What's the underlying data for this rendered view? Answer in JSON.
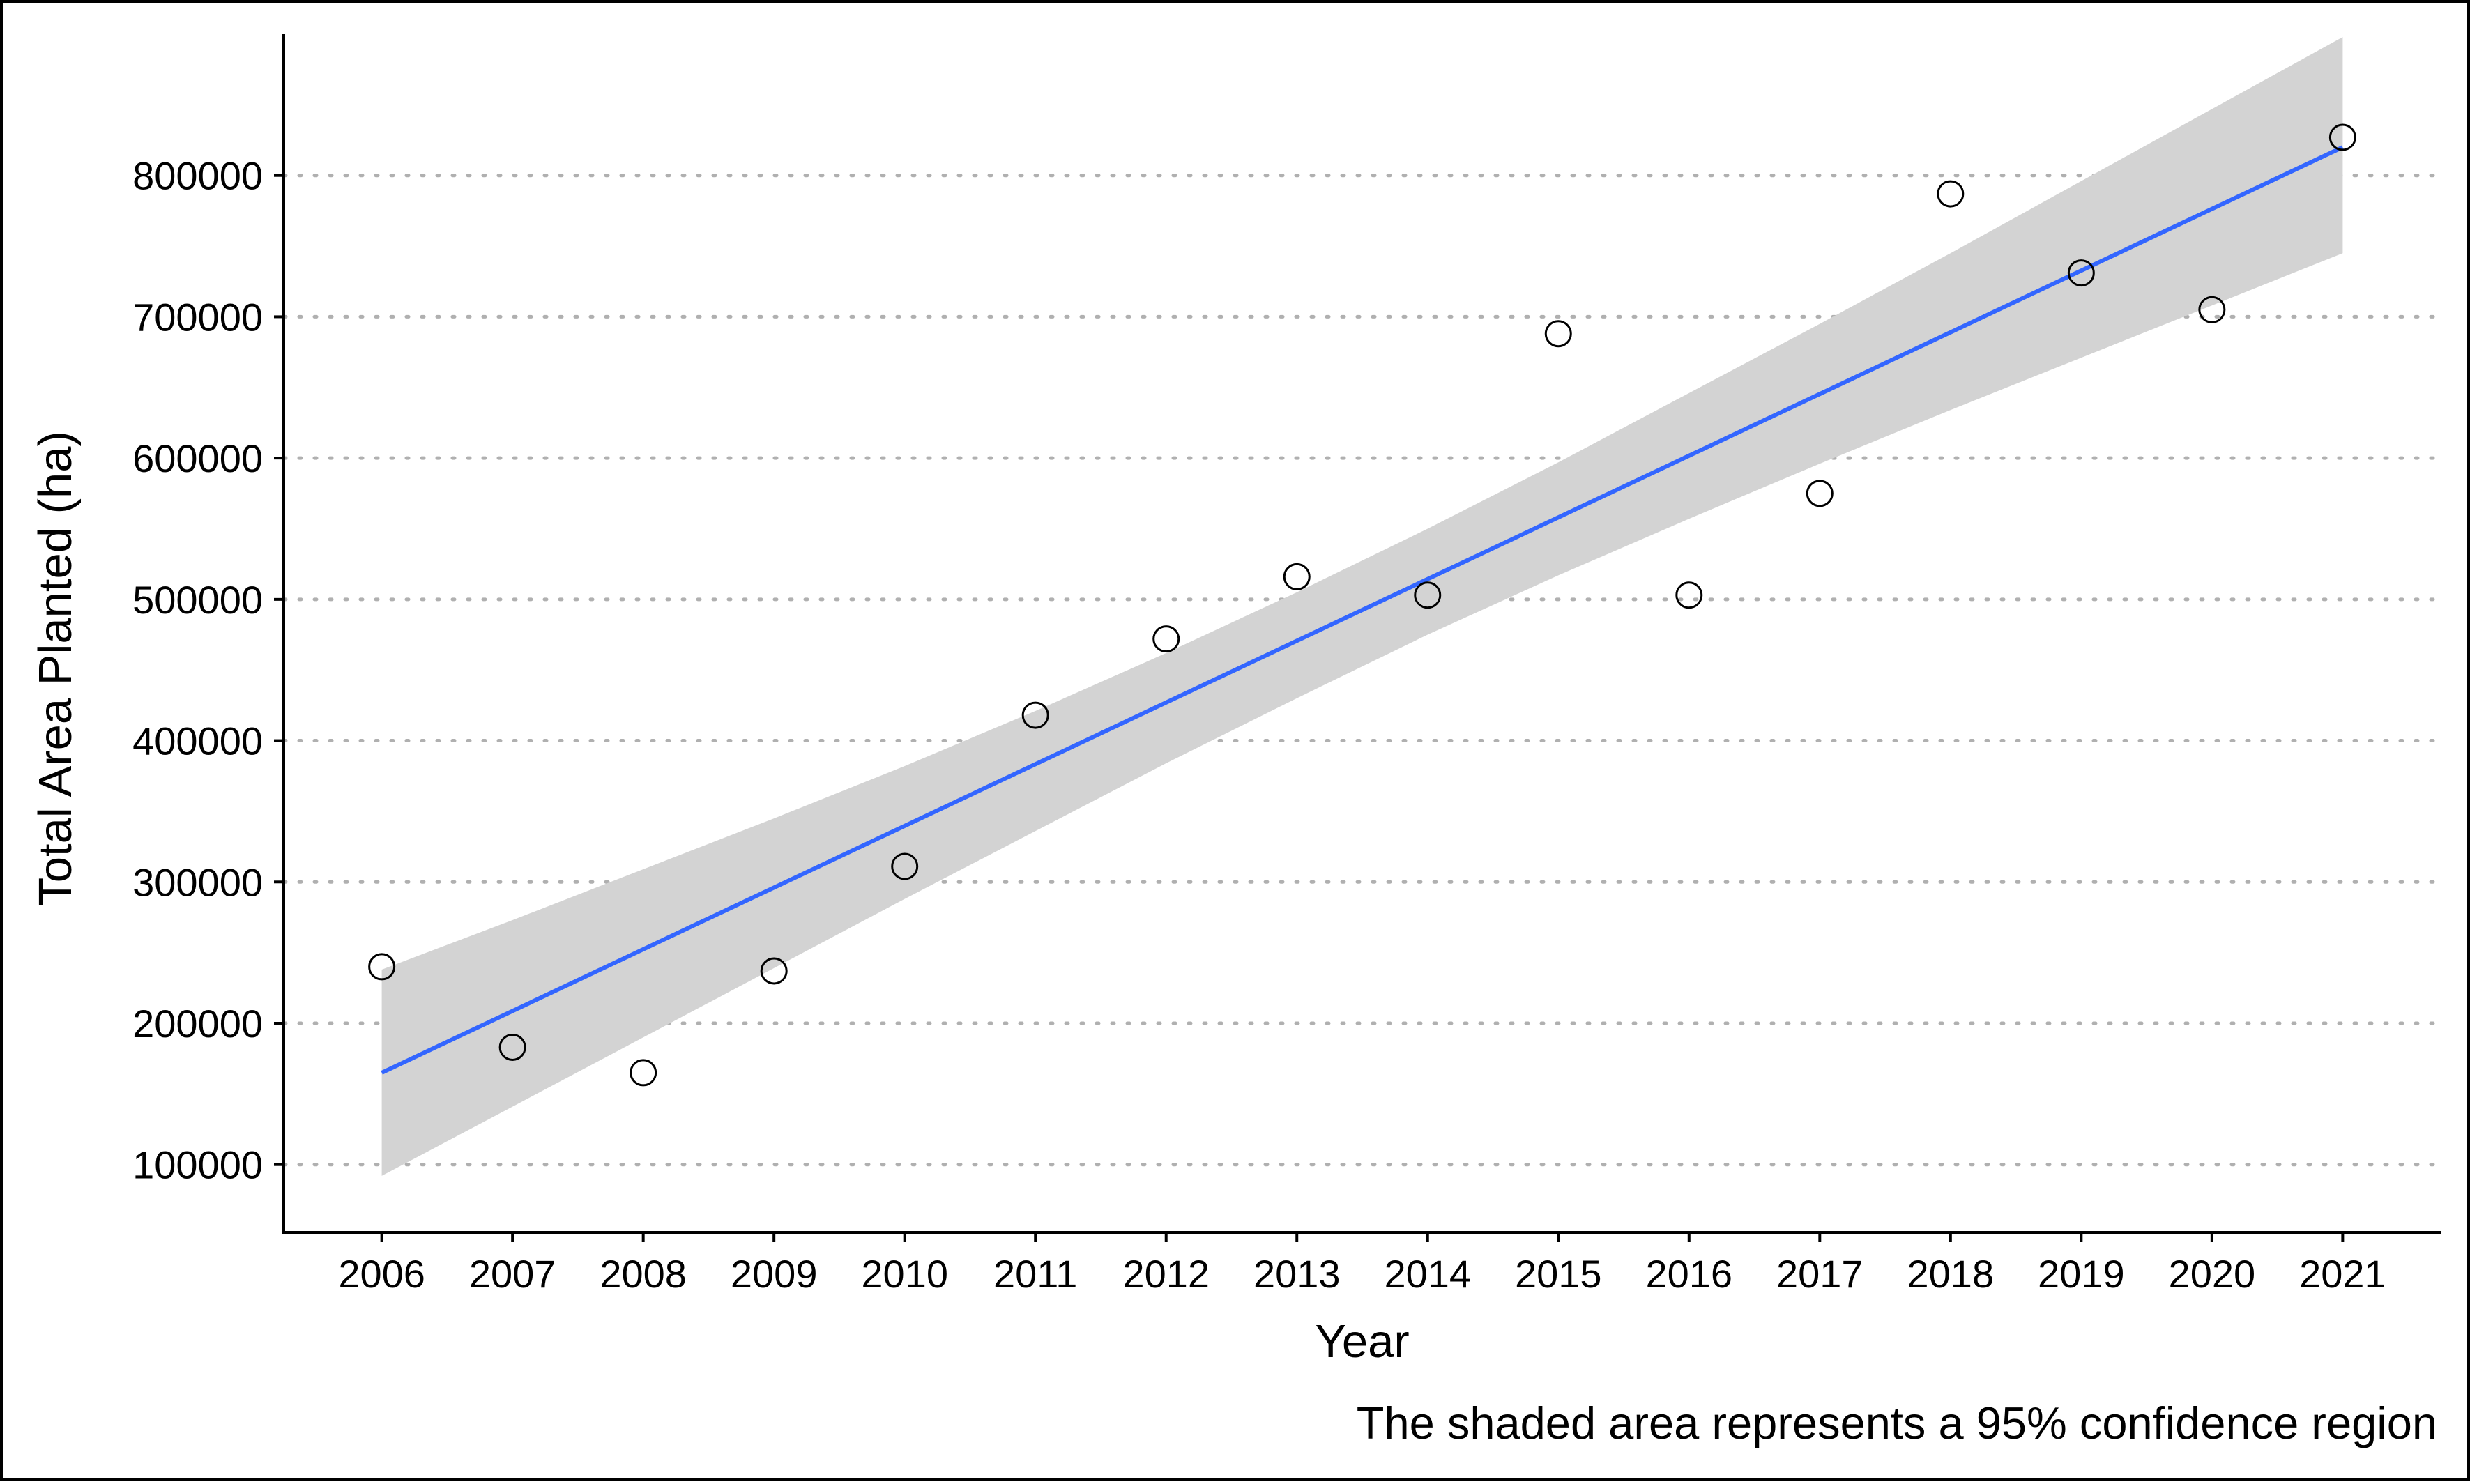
{
  "chart_data": {
    "type": "scatter",
    "title": "",
    "xlabel": "Year",
    "ylabel": "Total Area Planted (ha)",
    "caption": "The shaded area represents a 95% confidence region",
    "x_ticks": [
      "2006",
      "2007",
      "2008",
      "2009",
      "2010",
      "2011",
      "2012",
      "2013",
      "2014",
      "2015",
      "2016",
      "2017",
      "2018",
      "2019",
      "2020",
      "2021"
    ],
    "y_ticks": [
      "100000",
      "200000",
      "300000",
      "400000",
      "500000",
      "600000",
      "700000",
      "800000"
    ],
    "xlim": [
      2005.25,
      2021.75
    ],
    "ylim": [
      52000,
      900000
    ],
    "grid": "horizontal dotted at y ticks",
    "points": {
      "x": [
        2006,
        2007,
        2008,
        2009,
        2010,
        2011,
        2012,
        2013,
        2014,
        2015,
        2016,
        2017,
        2018,
        2019,
        2020,
        2021
      ],
      "y": [
        240000,
        183000,
        165000,
        237000,
        311000,
        418000,
        472000,
        516000,
        503000,
        688000,
        503000,
        575000,
        787000,
        731000,
        705000,
        827000
      ]
    },
    "fit_line": {
      "x": [
        2006,
        2021
      ],
      "y": [
        165000,
        820000
      ]
    },
    "confidence_band": {
      "x": [
        2006,
        2007,
        2008,
        2009,
        2010,
        2011,
        2012,
        2013,
        2014,
        2015,
        2016,
        2017,
        2018,
        2019,
        2020,
        2021
      ],
      "lower": [
        92000,
        141000,
        190000,
        239000,
        288000,
        336000,
        384000,
        430000,
        475000,
        517000,
        557000,
        596000,
        634000,
        671000,
        708000,
        745000
      ],
      "upper": [
        238000,
        273000,
        309000,
        345000,
        382000,
        421000,
        462000,
        505000,
        550000,
        597000,
        646000,
        695000,
        745000,
        796000,
        847000,
        898000
      ]
    },
    "colors": {
      "fit_line": "#3366FF",
      "band": "#D3D3D3",
      "points_stroke": "#000000",
      "grid": "#B0B0B0"
    }
  }
}
